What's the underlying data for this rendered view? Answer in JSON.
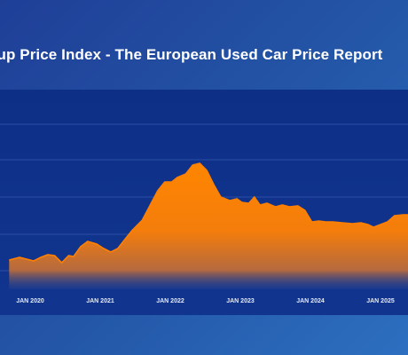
{
  "title": "oup Price Index - The European Used Car Price Report",
  "chart_data": {
    "type": "area",
    "title": "oup Price Index - The European Used Car Price Report",
    "xlabel": "",
    "ylabel": "",
    "x_ticks": [
      "JAN 2020",
      "JAN 2021",
      "JAN 2022",
      "JAN 2023",
      "JAN 2024",
      "JAN 2025"
    ],
    "grid": "horizontal",
    "legend": "none",
    "series_color": "#ff8000",
    "series": [
      {
        "values": [
          [
            2019.7,
            293
          ],
          [
            2019.85,
            290
          ],
          [
            2019.95,
            292
          ],
          [
            2020.05,
            294
          ],
          [
            2020.15,
            290
          ],
          [
            2020.25,
            287
          ],
          [
            2020.35,
            288
          ],
          [
            2020.45,
            296
          ],
          [
            2020.55,
            288
          ],
          [
            2020.62,
            289
          ],
          [
            2020.72,
            278
          ],
          [
            2020.82,
            272
          ],
          [
            2020.95,
            275
          ],
          [
            2021.05,
            280
          ],
          [
            2021.15,
            284
          ],
          [
            2021.25,
            280
          ],
          [
            2021.35,
            270
          ],
          [
            2021.45,
            260
          ],
          [
            2021.6,
            248
          ],
          [
            2021.72,
            230
          ],
          [
            2021.82,
            215
          ],
          [
            2021.92,
            205
          ],
          [
            2022.02,
            205
          ],
          [
            2022.1,
            200
          ],
          [
            2022.22,
            196
          ],
          [
            2022.32,
            186
          ],
          [
            2022.42,
            184
          ],
          [
            2022.52,
            192
          ],
          [
            2022.62,
            208
          ],
          [
            2022.72,
            222
          ],
          [
            2022.85,
            226
          ],
          [
            2022.95,
            224
          ],
          [
            2023.02,
            228
          ],
          [
            2023.12,
            229
          ],
          [
            2023.2,
            222
          ],
          [
            2023.28,
            231
          ],
          [
            2023.38,
            229
          ],
          [
            2023.5,
            233
          ],
          [
            2023.6,
            231
          ],
          [
            2023.7,
            233
          ],
          [
            2023.82,
            232
          ],
          [
            2023.92,
            237
          ],
          [
            2024.02,
            250
          ],
          [
            2024.12,
            249
          ],
          [
            2024.22,
            250
          ],
          [
            2024.32,
            250
          ],
          [
            2024.45,
            251
          ],
          [
            2024.6,
            252
          ],
          [
            2024.72,
            251
          ],
          [
            2024.82,
            253
          ],
          [
            2024.9,
            256
          ],
          [
            2025.0,
            253
          ],
          [
            2025.1,
            250
          ],
          [
            2025.2,
            243
          ],
          [
            2025.32,
            242
          ],
          [
            2025.45,
            242
          ],
          [
            2025.55,
            242
          ]
        ]
      }
    ]
  }
}
